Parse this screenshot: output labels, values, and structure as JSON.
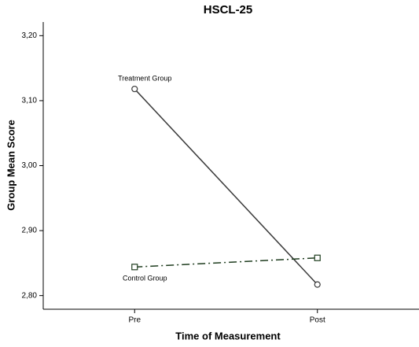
{
  "chart_data": {
    "type": "line",
    "title": "HSCL-25",
    "x_label": "Time of Measurement",
    "y_label": "Group Mean Score",
    "categories": [
      "Pre",
      "Post"
    ],
    "series": [
      {
        "name": "Treatment Group",
        "color": "#3a3a3a",
        "marker": "circle",
        "linestyle": "solid",
        "values": [
          3.118,
          2.817
        ]
      },
      {
        "name": "Control Group",
        "color": "#1f3d1f",
        "marker": "square",
        "linestyle": "dashdot",
        "values": [
          2.844,
          2.858
        ]
      }
    ],
    "ylim": [
      2.779,
      3.221
    ],
    "yticks": [
      {
        "value": 2.8,
        "label": "2,80"
      },
      {
        "value": 2.9,
        "label": "2,90"
      },
      {
        "value": 3.0,
        "label": "3,00"
      },
      {
        "value": 3.1,
        "label": "3,10"
      },
      {
        "value": 3.2,
        "label": "3,20"
      }
    ],
    "grid": false
  }
}
